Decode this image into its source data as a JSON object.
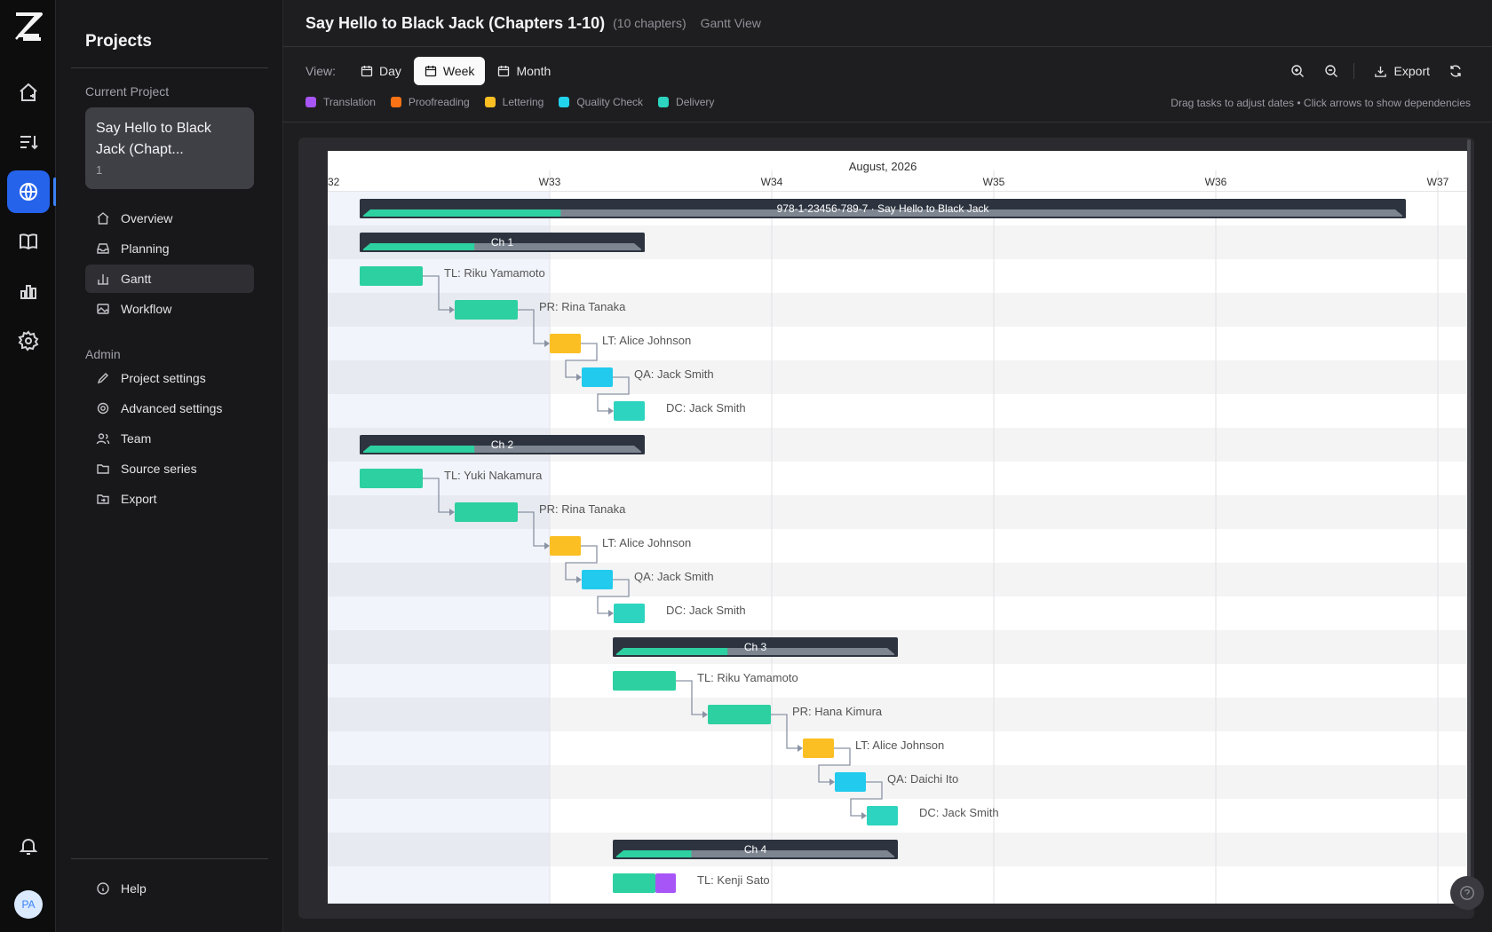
{
  "rail": {
    "avatar_initials": "PA"
  },
  "sidebar": {
    "title": "Projects",
    "current_project_label": "Current Project",
    "current_project": {
      "name": "Say Hello to Black Jack (Chapt...",
      "number": "1"
    },
    "nav": [
      {
        "label": "Overview",
        "icon": "home-icon"
      },
      {
        "label": "Planning",
        "icon": "inbox-icon"
      },
      {
        "label": "Gantt",
        "icon": "chart-icon"
      },
      {
        "label": "Workflow",
        "icon": "image-icon"
      }
    ],
    "admin_label": "Admin",
    "admin": [
      {
        "label": "Project settings",
        "icon": "pencil-icon"
      },
      {
        "label": "Advanced settings",
        "icon": "gear-icon"
      },
      {
        "label": "Team",
        "icon": "users-icon"
      },
      {
        "label": "Source series",
        "icon": "folder-icon"
      },
      {
        "label": "Export",
        "icon": "folder-export-icon"
      }
    ],
    "help_label": "Help"
  },
  "header": {
    "title": "Say Hello to Black Jack (Chapters 1-10)",
    "chapters": "(10 chapters)",
    "view_name": "Gantt View"
  },
  "toolbar": {
    "view_label": "View:",
    "views": [
      "Day",
      "Week",
      "Month"
    ],
    "active_view": "Week",
    "export_label": "Export"
  },
  "legend": [
    {
      "label": "Translation",
      "color": "#a855f7"
    },
    {
      "label": "Proofreading",
      "color": "#f97316"
    },
    {
      "label": "Lettering",
      "color": "#fbbf24"
    },
    {
      "label": "Quality Check",
      "color": "#22d3ee"
    },
    {
      "label": "Delivery",
      "color": "#2dd4bf"
    }
  ],
  "hint": "Drag tasks to adjust dates • Click arrows to show dependencies",
  "gantt": {
    "month_label": "August, 2026",
    "weeks": [
      "32",
      "W33",
      "W34",
      "W35",
      "W36",
      "W37"
    ],
    "project_bar_label": "978-1-23456-789-7 · Say Hello to Black Jack",
    "project_progress": 0.19,
    "colors": {
      "task": "#2dd0a0",
      "lettering": "#fbbf24",
      "qa": "#22cbee",
      "delivery": "#2dd4bf",
      "translation": "#a855f7",
      "summary": "#2d3440",
      "summary_rest": "#7d8590"
    },
    "chapters": [
      {
        "label": "Ch 1",
        "progress": 0.4,
        "tasks": [
          {
            "label": "TL: Riku Yamamoto",
            "type": "task"
          },
          {
            "label": "PR: Rina Tanaka",
            "type": "task"
          },
          {
            "label": "LT: Alice Johnson",
            "type": "lettering"
          },
          {
            "label": "QA: Jack Smith",
            "type": "qa"
          },
          {
            "label": "DC: Jack Smith",
            "type": "delivery"
          }
        ]
      },
      {
        "label": "Ch 2",
        "progress": 0.4,
        "tasks": [
          {
            "label": "TL: Yuki Nakamura",
            "type": "task"
          },
          {
            "label": "PR: Rina Tanaka",
            "type": "task"
          },
          {
            "label": "LT: Alice Johnson",
            "type": "lettering"
          },
          {
            "label": "QA: Jack Smith",
            "type": "qa"
          },
          {
            "label": "DC: Jack Smith",
            "type": "delivery"
          }
        ]
      },
      {
        "label": "Ch 3",
        "progress": 0.4,
        "tasks": [
          {
            "label": "TL: Riku Yamamoto",
            "type": "task"
          },
          {
            "label": "PR: Hana Kimura",
            "type": "task"
          },
          {
            "label": "LT: Alice Johnson",
            "type": "lettering"
          },
          {
            "label": "QA: Daichi Ito",
            "type": "qa"
          },
          {
            "label": "DC: Jack Smith",
            "type": "delivery"
          }
        ]
      },
      {
        "label": "Ch 4",
        "progress": 0.27,
        "tasks": [
          {
            "label": "TL: Kenji Sato",
            "type": "task"
          }
        ]
      }
    ]
  }
}
